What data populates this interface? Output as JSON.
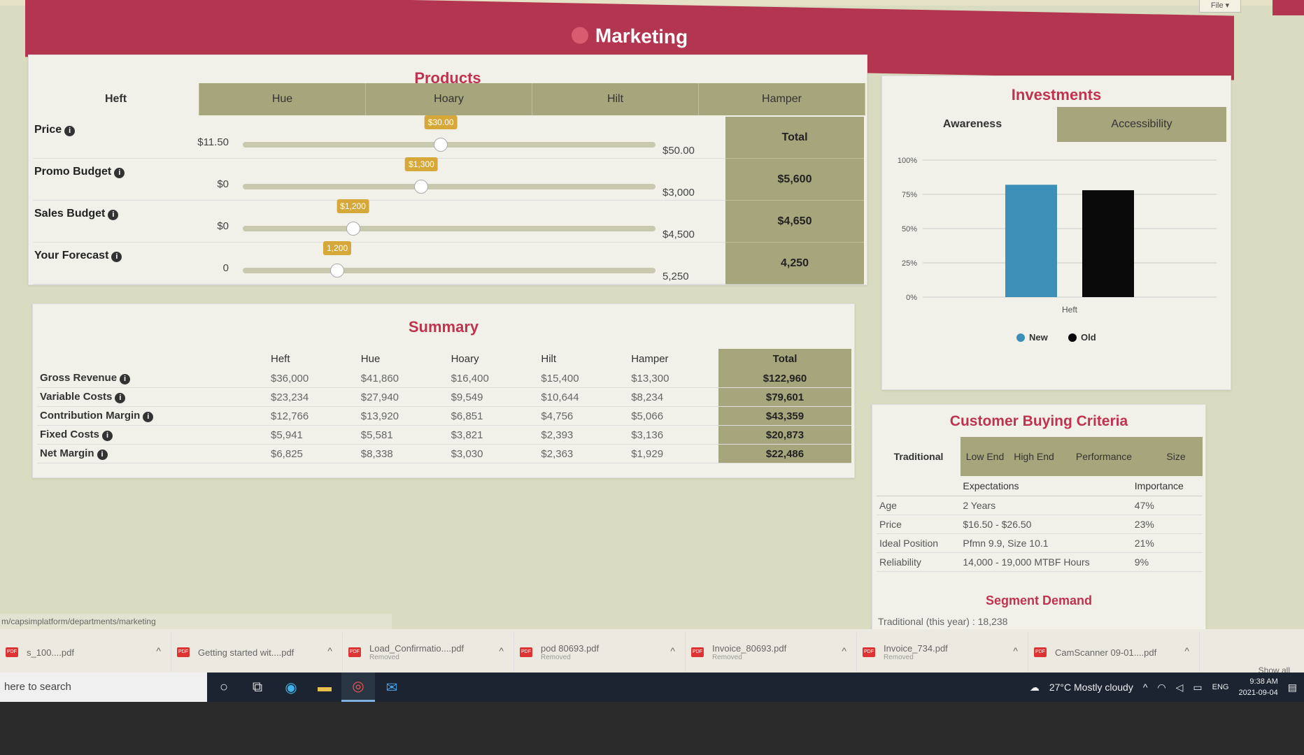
{
  "window": {
    "file_button": "File ▾"
  },
  "banner": {
    "title": "Marketing"
  },
  "products": {
    "title": "Products",
    "tabs": [
      "Heft",
      "Hue",
      "Hoary",
      "Hilt",
      "Hamper"
    ],
    "active_tab": "Heft",
    "total_header": "Total",
    "rows": [
      {
        "label": "Price",
        "min": "$11.50",
        "max": "$50.00",
        "value": "$30.00",
        "fraction": 0.48,
        "total": ""
      },
      {
        "label": "Promo Budget",
        "min": "$0",
        "max": "$3,000",
        "value": "$1,300",
        "fraction": 0.433,
        "total": "$5,600"
      },
      {
        "label": "Sales Budget",
        "min": "$0",
        "max": "$4,500",
        "value": "$1,200",
        "fraction": 0.267,
        "total": "$4,650"
      },
      {
        "label": "Your Forecast",
        "min": "0",
        "max": "5,250",
        "value": "1,200",
        "fraction": 0.229,
        "total": "4,250"
      }
    ]
  },
  "summary": {
    "title": "Summary",
    "columns": [
      "Heft",
      "Hue",
      "Hoary",
      "Hilt",
      "Hamper",
      "Total"
    ],
    "rows": [
      {
        "label": "Gross Revenue",
        "values": [
          "$36,000",
          "$41,860",
          "$16,400",
          "$15,400",
          "$13,300"
        ],
        "total": "$122,960"
      },
      {
        "label": "Variable Costs",
        "values": [
          "$23,234",
          "$27,940",
          "$9,549",
          "$10,644",
          "$8,234"
        ],
        "total": "$79,601"
      },
      {
        "label": "Contribution Margin",
        "values": [
          "$12,766",
          "$13,920",
          "$6,851",
          "$4,756",
          "$5,066"
        ],
        "total": "$43,359"
      },
      {
        "label": "Fixed Costs",
        "values": [
          "$5,941",
          "$5,581",
          "$3,821",
          "$2,393",
          "$3,136"
        ],
        "total": "$20,873"
      },
      {
        "label": "Net Margin",
        "values": [
          "$6,825",
          "$8,338",
          "$3,030",
          "$2,363",
          "$1,929"
        ],
        "total": "$22,486"
      }
    ]
  },
  "investments": {
    "title": "Investments",
    "tabs": [
      "Awareness",
      "Accessibility"
    ],
    "active_tab": "Awareness"
  },
  "chart_data": {
    "type": "bar",
    "categories": [
      "Heft"
    ],
    "series": [
      {
        "name": "New",
        "values": [
          82
        ],
        "color": "#3d8fb8"
      },
      {
        "name": "Old",
        "values": [
          78
        ],
        "color": "#0a0a0a"
      }
    ],
    "yticks": [
      "0%",
      "25%",
      "50%",
      "75%",
      "100%"
    ],
    "ylim": [
      0,
      100
    ],
    "legend": "bottom"
  },
  "cbc": {
    "title": "Customer Buying Criteria",
    "tabs": [
      "Traditional",
      "Low End",
      "High End",
      "Performance",
      "Size"
    ],
    "active_tab": "Traditional",
    "headers": [
      "",
      "Expectations",
      "Importance"
    ],
    "rows": [
      {
        "criterion": "Age",
        "expectation": "2 Years",
        "importance": "47%"
      },
      {
        "criterion": "Price",
        "expectation": "$16.50 - $26.50",
        "importance": "23%"
      },
      {
        "criterion": "Ideal Position",
        "expectation": "Pfmn 9.9, Size 10.1",
        "importance": "21%"
      },
      {
        "criterion": "Reliability",
        "expectation": "14,000 - 19,000 MTBF Hours",
        "importance": "9%"
      }
    ],
    "segment_title": "Segment Demand",
    "segment_text": "Traditional (this year) : 18,238"
  },
  "status_url": "m/capsimplatform/departments/marketing",
  "downloads": {
    "items": [
      {
        "name": "s_100....pdf",
        "sub": ""
      },
      {
        "name": "Getting started wit....pdf",
        "sub": ""
      },
      {
        "name": "Load_Confirmatio....pdf",
        "sub": "Removed"
      },
      {
        "name": "pod 80693.pdf",
        "sub": "Removed"
      },
      {
        "name": "Invoice_80693.pdf",
        "sub": "Removed"
      },
      {
        "name": "Invoice_734.pdf",
        "sub": "Removed"
      },
      {
        "name": "CamScanner 09-01....pdf",
        "sub": ""
      }
    ],
    "show_all": "Show all"
  },
  "taskbar": {
    "search_placeholder": "here to search",
    "weather": "27°C  Mostly cloudy",
    "language": "ENG",
    "time": "9:38 AM",
    "date": "2021-09-04"
  }
}
